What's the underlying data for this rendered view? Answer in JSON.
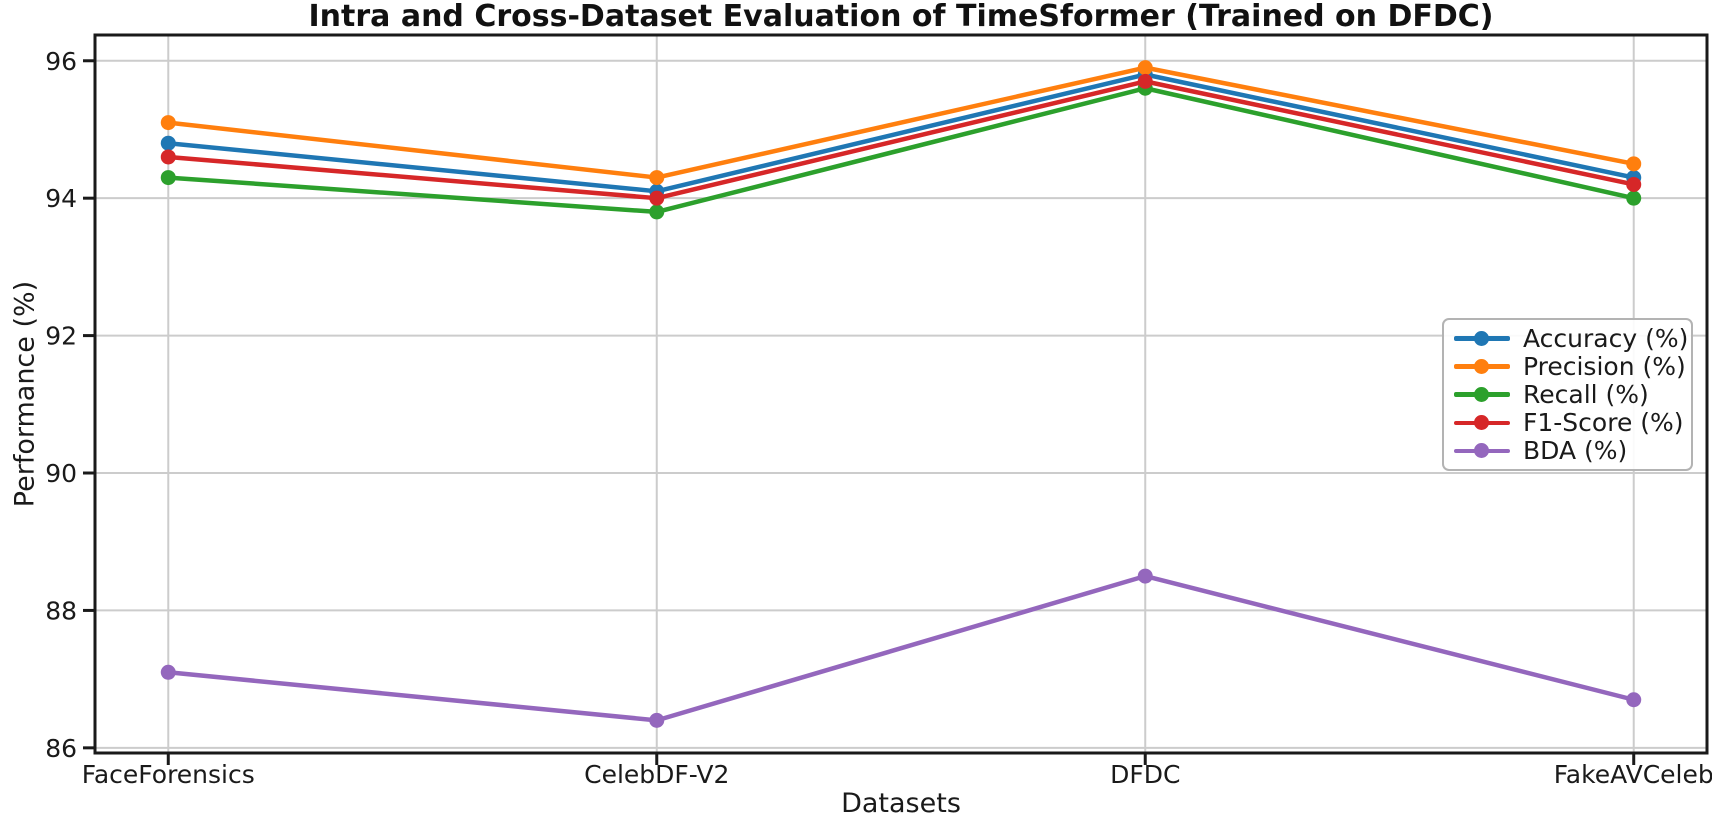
{
  "figure": {
    "background": "#ffffff",
    "text_color": "#1a1a1a",
    "spine_color": "#1a1a1a"
  },
  "chart_data": {
    "type": "line",
    "title": "Intra and Cross-Dataset Evaluation of TimeSformer (Trained on DFDC)",
    "xlabel": "Datasets",
    "ylabel": "Performance (%)",
    "categories": [
      "FaceForensics",
      "CelebDF-V2",
      "DFDC",
      "FakeAVCeleb"
    ],
    "series": [
      {
        "name": "Accuracy (%)",
        "color": "#1f77b4",
        "values": [
          94.8,
          94.1,
          95.8,
          94.3
        ]
      },
      {
        "name": "Precision (%)",
        "color": "#ff7f0e",
        "values": [
          95.1,
          94.3,
          95.9,
          94.5
        ]
      },
      {
        "name": "Recall (%)",
        "color": "#2ca02c",
        "values": [
          94.3,
          93.8,
          95.6,
          94.0
        ]
      },
      {
        "name": "F1-Score (%)",
        "color": "#d62728",
        "values": [
          94.6,
          94.0,
          95.7,
          94.2
        ]
      },
      {
        "name": "BDA (%)",
        "color": "#9467bd",
        "values": [
          87.1,
          86.4,
          88.5,
          86.7
        ]
      }
    ],
    "ylim": [
      85.925,
      96.375
    ],
    "yticks": [
      86,
      88,
      90,
      92,
      94,
      96
    ],
    "x_margin": 0.15,
    "grid": true,
    "grid_color": "#cccccc",
    "legend_position": "center right"
  }
}
